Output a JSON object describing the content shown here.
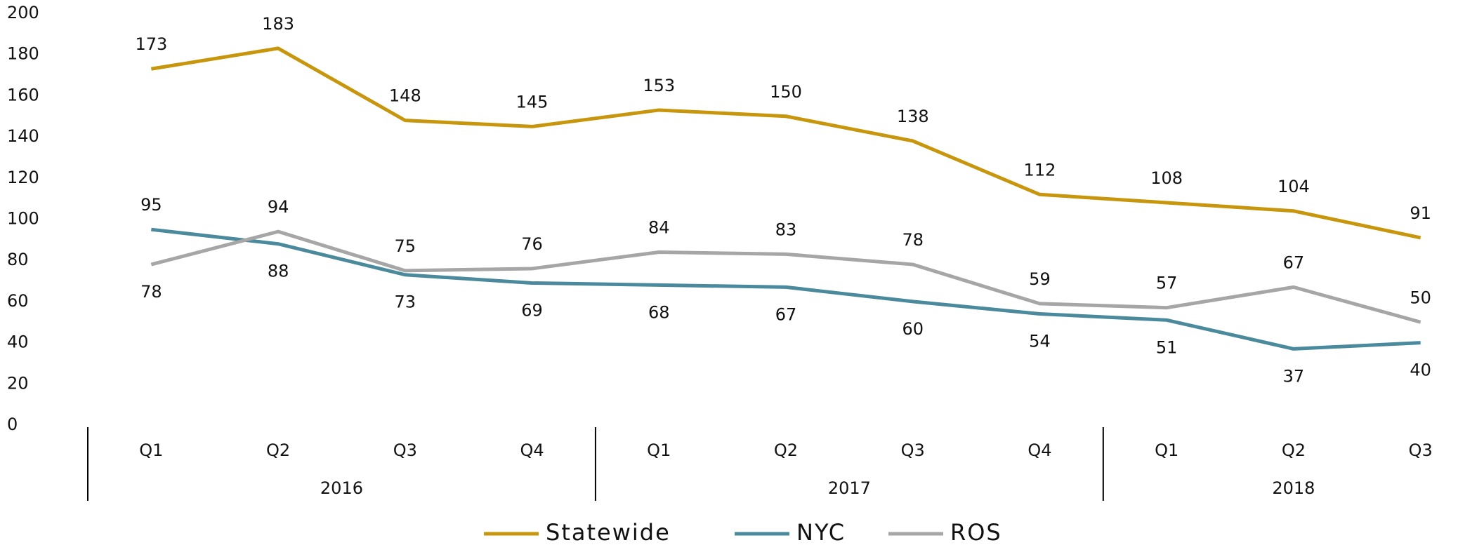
{
  "chart_data": {
    "type": "line",
    "categories": [
      "Q1",
      "Q2",
      "Q3",
      "Q4",
      "Q1",
      "Q2",
      "Q3",
      "Q4",
      "Q1",
      "Q2",
      "Q3"
    ],
    "category_groups": [
      {
        "label": "2016",
        "count": 4
      },
      {
        "label": "2017",
        "count": 4
      },
      {
        "label": "2018",
        "count": 3
      }
    ],
    "series": [
      {
        "name": "Statewide",
        "color": "#c8960c",
        "values": [
          173,
          183,
          148,
          145,
          153,
          150,
          138,
          112,
          108,
          104,
          91
        ]
      },
      {
        "name": "NYC",
        "color": "#4a8a9c",
        "values": [
          95,
          88,
          73,
          69,
          68,
          67,
          60,
          54,
          51,
          37,
          40
        ]
      },
      {
        "name": "ROS",
        "color": "#a6a6a6",
        "values": [
          78,
          94,
          75,
          76,
          84,
          83,
          78,
          59,
          57,
          67,
          50
        ]
      }
    ],
    "ylim": [
      0,
      200
    ],
    "yticks": [
      0,
      20,
      40,
      60,
      80,
      100,
      120,
      140,
      160,
      180,
      200
    ],
    "grid": false,
    "legend": "bottom"
  }
}
